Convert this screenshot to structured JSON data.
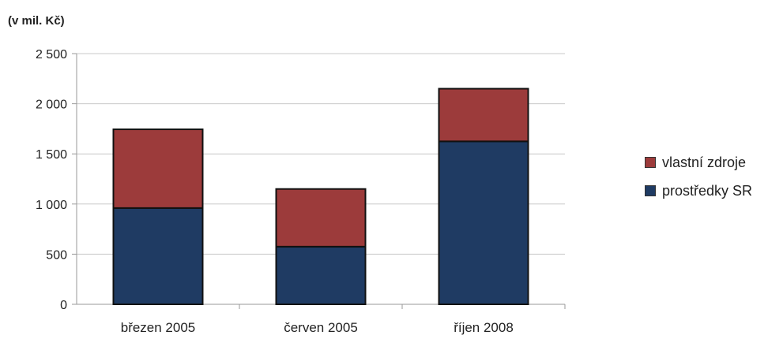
{
  "chart_data": {
    "type": "bar",
    "stacked": true,
    "unit_label": "(v mil. Kč)",
    "categories": [
      "březen 2005",
      "červen 2005",
      "říjen 2008"
    ],
    "series": [
      {
        "name": "prostředky SR",
        "values": [
          960,
          575,
          1625
        ],
        "color": "#1f3b63"
      },
      {
        "name": "vlastní zdroje",
        "values": [
          785,
          575,
          525
        ],
        "color": "#9c3b3b"
      }
    ],
    "ylim": [
      0,
      2500
    ],
    "yticks": [
      0,
      500,
      1000,
      1500,
      2000,
      2500
    ],
    "ytick_labels": [
      "0",
      "500",
      "1 000",
      "1 500",
      "2 000",
      "2 500"
    ],
    "grid": true,
    "legend_position": "right",
    "legend_order": [
      "vlastní zdroje",
      "prostředky SR"
    ]
  }
}
